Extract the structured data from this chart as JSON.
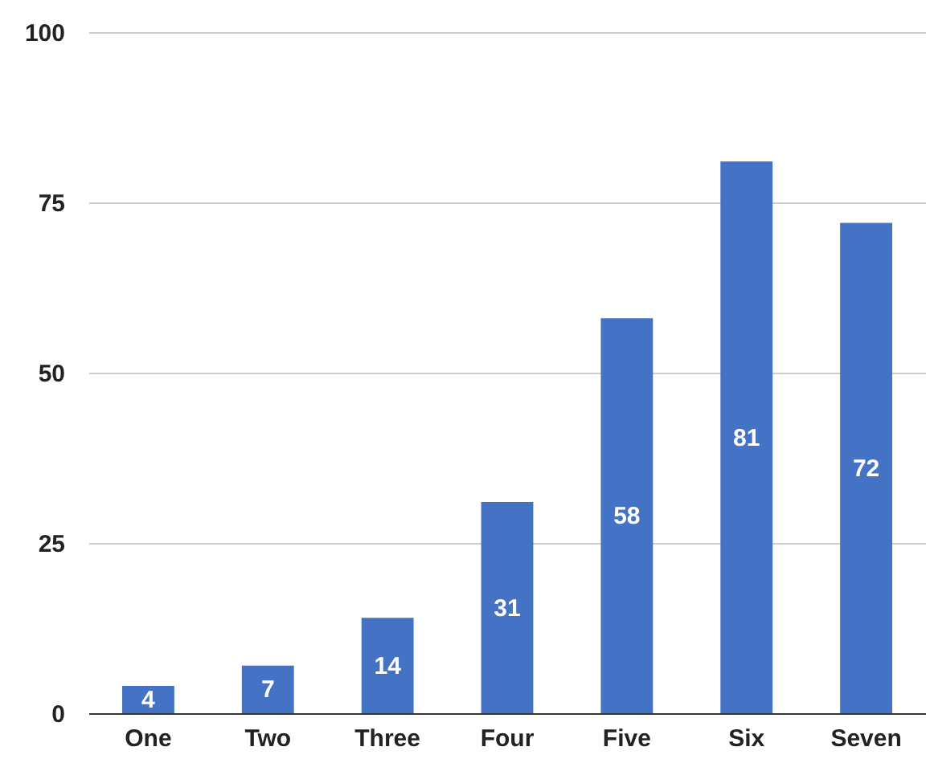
{
  "chart_data": {
    "type": "bar",
    "categories": [
      "One",
      "Two",
      "Three",
      "Four",
      "Five",
      "Six",
      "Seven"
    ],
    "values": [
      4,
      7,
      14,
      31,
      58,
      81,
      72
    ],
    "color": "#4472c4",
    "ylim": [
      0,
      100
    ],
    "yticks": [
      0,
      25,
      50,
      75,
      100
    ],
    "grid": "y",
    "data_labels": true
  }
}
